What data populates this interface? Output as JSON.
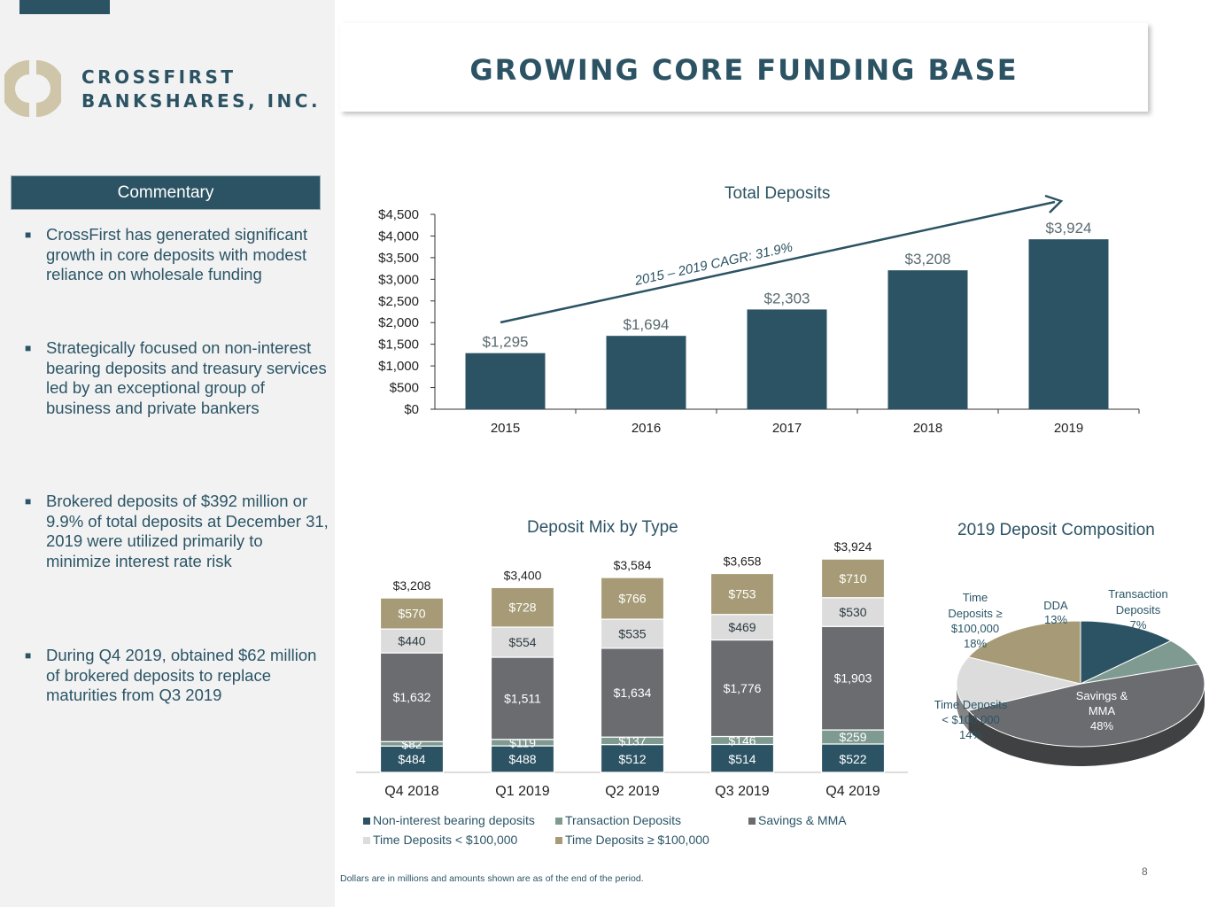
{
  "company": {
    "line1": "CROSSFIRST",
    "line2": "BANKSHARES, INC."
  },
  "page_title": "GROWING CORE FUNDING BASE",
  "commentary": {
    "heading": "Commentary",
    "bullets": [
      "CrossFirst has generated significant growth in core deposits with modest reliance on wholesale funding",
      "Strategically focused on non-interest bearing deposits and treasury services led by an exceptional group of business and private bankers",
      "Brokered deposits of $392 million or 9.9% of total deposits at December 31, 2019 were utilized primarily to minimize interest rate risk",
      "During Q4 2019, obtained $62 million of brokered deposits to replace maturities from Q3 2019"
    ]
  },
  "colors": {
    "navy": "#2c5364",
    "gray": "#6b6c70",
    "light": "#dcdcdc",
    "tan": "#a69b76",
    "sage": "#7f9a90"
  },
  "footnote": "Dollars are in millions and amounts shown are as of the end of the period.",
  "page_number": "8",
  "chart_data": [
    {
      "type": "bar",
      "title": "Total Deposits",
      "categories": [
        "2015",
        "2016",
        "2017",
        "2018",
        "2019"
      ],
      "values": [
        1295,
        1694,
        2303,
        3208,
        3924
      ],
      "value_labels": [
        "$1,295",
        "$1,694",
        "$2,303",
        "$3,208",
        "$3,924"
      ],
      "yticks": [
        "$0",
        "$500",
        "$1,000",
        "$1,500",
        "$2,000",
        "$2,500",
        "$3,000",
        "$3,500",
        "$4,000",
        "$4,500"
      ],
      "ylim": [
        0,
        4500
      ],
      "annotation": "2015 – 2019 CAGR: 31.9%"
    },
    {
      "type": "bar",
      "stacked": true,
      "title": "Deposit Mix by Type",
      "categories": [
        "Q4 2018",
        "Q1 2019",
        "Q2 2019",
        "Q3 2019",
        "Q4 2019"
      ],
      "totals": [
        3208,
        3400,
        3584,
        3658,
        3924
      ],
      "total_labels": [
        "$3,208",
        "$3,400",
        "$3,584",
        "$3,658",
        "$3,924"
      ],
      "series": [
        {
          "name": "Non-interest bearing deposits",
          "values": [
            484,
            488,
            512,
            514,
            522
          ],
          "labels": [
            "$484",
            "$488",
            "$512",
            "$514",
            "$522"
          ]
        },
        {
          "name": "Transaction Deposits",
          "values": [
            82,
            119,
            137,
            146,
            259
          ],
          "labels": [
            "$82",
            "$119",
            "$137",
            "$146",
            "$259"
          ]
        },
        {
          "name": "Savings & MMA",
          "values": [
            1632,
            1511,
            1634,
            1776,
            1903
          ],
          "labels": [
            "$1,632",
            "$1,511",
            "$1,634",
            "$1,776",
            "$1,903"
          ]
        },
        {
          "name": "Time Deposits < $100,000",
          "values": [
            440,
            554,
            535,
            469,
            530
          ],
          "labels": [
            "$440",
            "$554",
            "$535",
            "$469",
            "$530"
          ]
        },
        {
          "name": "Time Deposits ≥ $100,000",
          "values": [
            570,
            728,
            766,
            753,
            710
          ],
          "labels": [
            "$570",
            "$728",
            "$766",
            "$753",
            "$710"
          ]
        }
      ]
    },
    {
      "type": "pie",
      "title": "2019 Deposit Composition",
      "slices": [
        {
          "name": "DDA",
          "value": 13,
          "label": "13%"
        },
        {
          "name": "Transaction Deposits",
          "value": 7,
          "label": "7%"
        },
        {
          "name": "Savings & MMA",
          "value": 48,
          "label": "48%"
        },
        {
          "name": "Time Deposits < $100,000",
          "value": 14,
          "label": "14%"
        },
        {
          "name": "Time Deposits ≥ $100,000",
          "value": 18,
          "label": "18%"
        }
      ]
    }
  ]
}
